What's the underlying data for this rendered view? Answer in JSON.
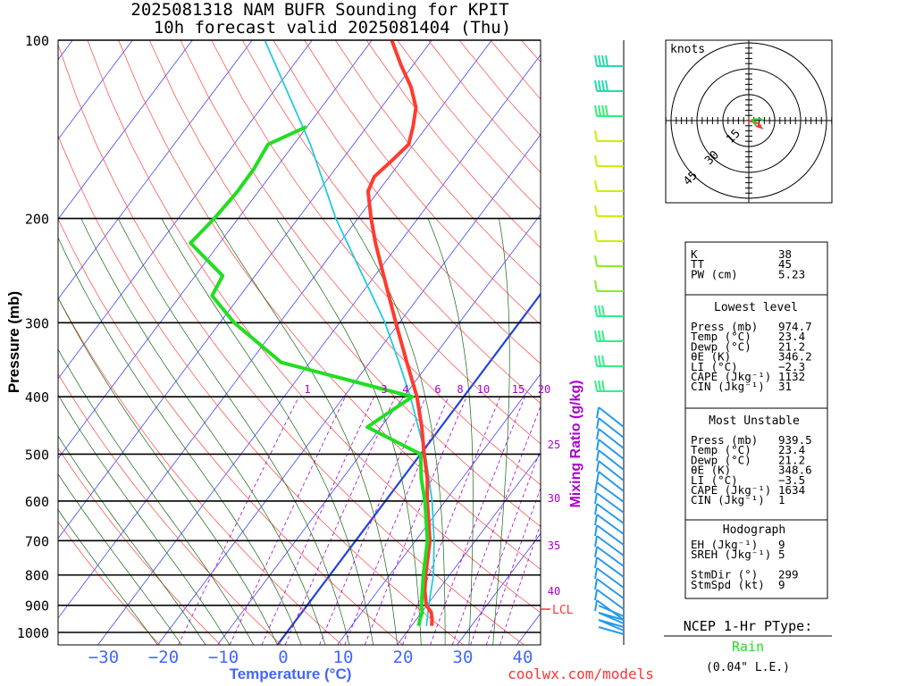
{
  "header": {
    "title_line1": "2025081318 NAM BUFR Sounding for KPIT",
    "title_line2": "10h forecast valid 2025081404 (Thu)"
  },
  "axes": {
    "ylabel": "Pressure (mb)",
    "xlabel": "Temperature (°C)",
    "mixing_label": "Mixing Ratio (g/kg)",
    "lcl_label": "LCL",
    "credit": "coolwx.com/models"
  },
  "hodograph": {
    "units_label": "knots",
    "ring_labels": [
      "15",
      "30",
      "45"
    ]
  },
  "stats": {
    "indices": [
      {
        "label": "K",
        "value": "38"
      },
      {
        "label": "TT",
        "value": "45"
      },
      {
        "label": "PW (cm)",
        "value": "5.23"
      }
    ],
    "lowest_title": "Lowest level",
    "lowest": [
      {
        "label": "Press (mb)",
        "value": "974.7"
      },
      {
        "label": "Temp (°C)",
        "value": "23.4"
      },
      {
        "label": "Dewp (°C)",
        "value": "21.2"
      },
      {
        "label": "θE (K)",
        "value": "346.2"
      },
      {
        "label": "LI (°C)",
        "value": "−2.3"
      },
      {
        "label": "CAPE (Jkg⁻¹)",
        "value": "1132"
      },
      {
        "label": "CIN (Jkg⁻¹)",
        "value": "31"
      }
    ],
    "unstable_title": "Most Unstable",
    "unstable": [
      {
        "label": "Press (mb)",
        "value": "939.5"
      },
      {
        "label": "Temp (°C)",
        "value": "23.4"
      },
      {
        "label": "Dewp (°C)",
        "value": "21.2"
      },
      {
        "label": "θE (K)",
        "value": "348.6"
      },
      {
        "label": "LI (°C)",
        "value": "−3.5"
      },
      {
        "label": "CAPE (Jkg⁻¹)",
        "value": "1634"
      },
      {
        "label": "CIN (Jkg⁻¹)",
        "value": "1"
      }
    ],
    "hodo_title": "Hodograph",
    "hodo": [
      {
        "label": "EH (Jkg⁻¹)",
        "value": "9"
      },
      {
        "label": "SREH (Jkg⁻¹)",
        "value": "5"
      },
      {
        "label": "",
        "value": ""
      },
      {
        "label": "StmDir (°)",
        "value": "299"
      },
      {
        "label": "StmSpd (kt)",
        "value": "9"
      }
    ]
  },
  "ptype": {
    "title": "NCEP 1-Hr PType:",
    "value": "Rain",
    "amount": "(0.04\" L.E.)"
  },
  "colors": {
    "temperature": "#ff3b2f",
    "dewpoint": "#22dd22",
    "parcel": "#22ccdd",
    "mixing": "#aa00cc",
    "isotherm": "#4444ff",
    "dry_adiabat": "#ff4444",
    "moist_adiabat": "#116611",
    "freezing": "#2244dd"
  },
  "chart_data": {
    "type": "line",
    "title": "2025081318 NAM BUFR Sounding for KPIT",
    "xlabel": "Temperature (°C)",
    "ylabel": "Pressure (mb)",
    "y_scale": "log",
    "ylim": [
      1050,
      100
    ],
    "xlim": [
      -40,
      40
    ],
    "pressure_ticks": [
      100,
      200,
      300,
      400,
      500,
      600,
      700,
      800,
      900,
      1000
    ],
    "temp_ticks": [
      -30,
      -20,
      -10,
      0,
      10,
      20,
      30,
      40
    ],
    "mixing_ratio_labels": [
      "1",
      "3",
      "4",
      "6",
      "8",
      "10",
      "15",
      "20",
      "25",
      "30",
      "35",
      "40"
    ],
    "series": [
      {
        "name": "Temperature",
        "points": [
          [
            975,
            23.4
          ],
          [
            950,
            22.6
          ],
          [
            925,
            21.6
          ],
          [
            900,
            19.9
          ],
          [
            850,
            17.8
          ],
          [
            800,
            16.0
          ],
          [
            700,
            12.4
          ],
          [
            600,
            7.0
          ],
          [
            550,
            4.2
          ],
          [
            500,
            0.6
          ],
          [
            450,
            -3.2
          ],
          [
            400,
            -7.8
          ],
          [
            350,
            -13.8
          ],
          [
            300,
            -20.6
          ],
          [
            250,
            -28.5
          ],
          [
            220,
            -34.0
          ],
          [
            200,
            -37.8
          ],
          [
            180,
            -41.7
          ],
          [
            170,
            -42.5
          ],
          [
            160,
            -41.6
          ],
          [
            150,
            -40.8
          ],
          [
            140,
            -42.3
          ],
          [
            130,
            -44.2
          ],
          [
            120,
            -47.6
          ],
          [
            110,
            -52.1
          ],
          [
            100,
            -56.7
          ]
        ]
      },
      {
        "name": "Dewpoint",
        "points": [
          [
            975,
            21.2
          ],
          [
            950,
            20.6
          ],
          [
            925,
            20.1
          ],
          [
            900,
            19.1
          ],
          [
            850,
            17.4
          ],
          [
            800,
            15.6
          ],
          [
            700,
            12.0
          ],
          [
            600,
            6.6
          ],
          [
            550,
            3.2
          ],
          [
            500,
            0.0
          ],
          [
            450,
            -12.3
          ],
          [
            400,
            -8.6
          ],
          [
            350,
            -34.8
          ],
          [
            300,
            -47.6
          ],
          [
            270,
            -54.7
          ],
          [
            250,
            -55.4
          ],
          [
            220,
            -64.9
          ],
          [
            200,
            -64.0
          ],
          [
            180,
            -63.5
          ],
          [
            165,
            -63.6
          ],
          [
            150,
            -64.3
          ],
          [
            140,
            -60.1
          ]
        ]
      },
      {
        "name": "Parcel",
        "points": [
          [
            975,
            22.5
          ],
          [
            900,
            20.3
          ],
          [
            800,
            17.3
          ],
          [
            700,
            13.1
          ],
          [
            600,
            7.8
          ],
          [
            500,
            0.8
          ],
          [
            400,
            -8.9
          ],
          [
            350,
            -15.1
          ],
          [
            300,
            -22.4
          ],
          [
            250,
            -32.0
          ],
          [
            200,
            -43.7
          ],
          [
            150,
            -57.2
          ],
          [
            100,
            -77.9
          ]
        ]
      }
    ]
  }
}
